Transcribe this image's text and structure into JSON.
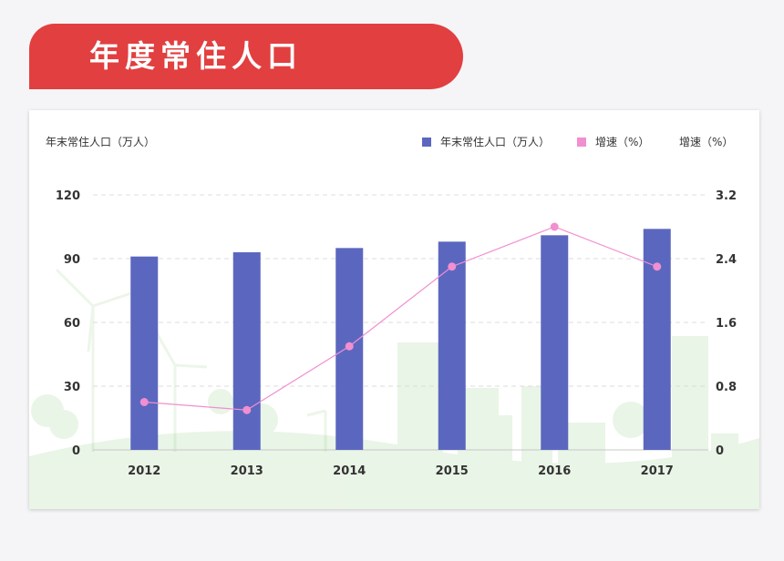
{
  "header": {
    "title": "年度常住人口"
  },
  "colors": {
    "banner": "#e23f40",
    "bar": "#5b67bf",
    "line": "#f18fd0"
  },
  "chart_data": {
    "type": "bar",
    "categories": [
      "2012",
      "2013",
      "2014",
      "2015",
      "2016",
      "2017"
    ],
    "series": [
      {
        "name": "年末常住人口（万人）",
        "type": "bar",
        "axis": "left",
        "values": [
          91,
          93,
          95,
          98,
          101,
          104
        ]
      },
      {
        "name": "增速（%）",
        "type": "line",
        "axis": "right",
        "values": [
          0.6,
          0.5,
          1.3,
          2.3,
          2.8,
          2.3
        ]
      }
    ],
    "ylabel": "年末常住人口（万人）",
    "ylabel_right": "增速（%）",
    "ylim": [
      0,
      120
    ],
    "ylim_right": [
      0,
      3.2
    ],
    "yticks": [
      0,
      30,
      60,
      90,
      120
    ],
    "yticks_labels": [
      "0",
      "30",
      "60",
      "90",
      "120"
    ],
    "yticks_right": [
      0,
      0.8,
      1.6,
      2.4,
      3.2
    ],
    "yticks_right_labels": [
      "0",
      "0.8",
      "1.6",
      "2.4",
      "3.2"
    ],
    "grid": true,
    "legend_position": "top-right"
  }
}
